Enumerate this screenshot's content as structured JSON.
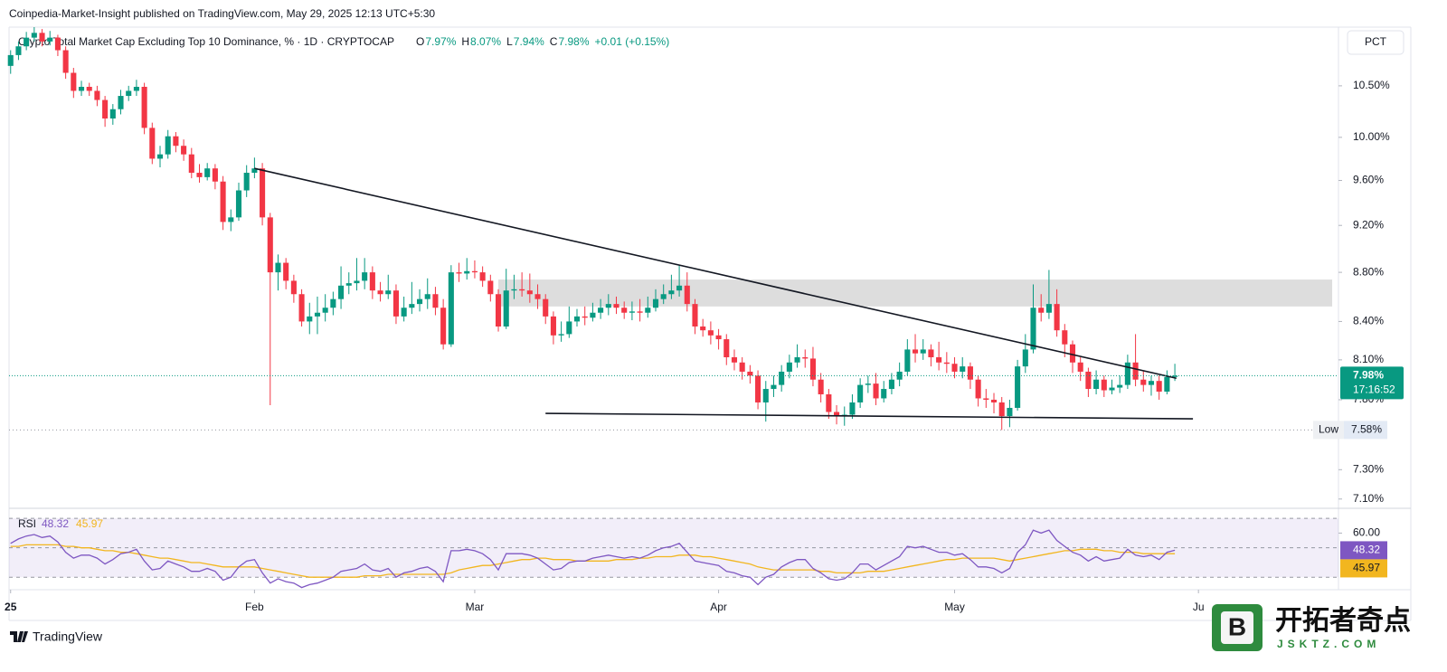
{
  "header": {
    "publisher": "Coinpedia-Market-Insight published on TradingView.com, May 29, 2025 12:13 UTC+5:30",
    "scale_button": "PCT"
  },
  "footer": {
    "brand": "TradingView"
  },
  "watermark": {
    "name": "开拓者奇点",
    "url": "JSKTZ.COM",
    "icon": "B"
  },
  "chart_data": [
    {
      "type": "candlestick",
      "title": "Crypto Total Market Cap Excluding Top 10 Dominance, % · 1D · CRYPTOCAP",
      "legend": [
        {
          "key": "O",
          "value": "7.97%"
        },
        {
          "key": "H",
          "value": "8.07%"
        },
        {
          "key": "L",
          "value": "7.94%"
        },
        {
          "key": "C",
          "value": "7.98%"
        }
      ],
      "change": "+0.01 (+0.15%)",
      "up_color": "#089981",
      "down_color": "#f23645",
      "log_scale": true,
      "grid": false,
      "xlim": [
        -0.2,
        168.8
      ],
      "ylim": [
        7.05,
        11.1
      ],
      "xticks": [
        {
          "value": 0,
          "label": "25"
        },
        {
          "value": 31,
          "label": "Feb"
        },
        {
          "value": 59,
          "label": "Mar"
        },
        {
          "value": 90,
          "label": "Apr"
        },
        {
          "value": 120,
          "label": "May"
        },
        {
          "value": 151,
          "label": "Ju"
        }
      ],
      "yticks": [
        {
          "value": 10.5,
          "label": "10.50%"
        },
        {
          "value": 10,
          "label": "10.00%"
        },
        {
          "value": 9.6,
          "label": "9.60%"
        },
        {
          "value": 9.2,
          "label": "9.20%"
        },
        {
          "value": 8.8,
          "label": "8.80%"
        },
        {
          "value": 8.4,
          "label": "8.40%"
        },
        {
          "value": 8.1,
          "label": "8.10%"
        },
        {
          "value": 7.8,
          "label": "7.80%"
        },
        {
          "value": 7.3,
          "label": "7.30%"
        },
        {
          "value": 7.1,
          "label": "7.10%"
        }
      ],
      "open": [
        10.7,
        10.81,
        10.9,
        10.99,
        11.04,
        10.95,
        10.99,
        10.86,
        10.63,
        10.45,
        10.49,
        10.45,
        10.36,
        10.18,
        10.27,
        10.4,
        10.45,
        10.49,
        10.09,
        9.8,
        9.84,
        10.01,
        9.92,
        9.84,
        9.67,
        9.63,
        9.71,
        9.59,
        9.23,
        9.27,
        9.51,
        9.67,
        9.71,
        9.27,
        8.8,
        8.88,
        8.73,
        8.62,
        8.4,
        8.44,
        8.47,
        8.51,
        8.58,
        8.69,
        8.71,
        8.73,
        8.8,
        8.65,
        8.62,
        8.65,
        8.44,
        8.51,
        8.54,
        8.58,
        8.62,
        8.51,
        8.22,
        8.8,
        8.79,
        8.81,
        8.8,
        8.73,
        8.62,
        8.36,
        8.65,
        8.66,
        8.65,
        8.62,
        8.58,
        8.44,
        8.29,
        8.3,
        8.4,
        8.44,
        8.43,
        8.47,
        8.51,
        8.54,
        8.51,
        8.47,
        8.48,
        8.47,
        8.51,
        8.58,
        8.62,
        8.65,
        8.69,
        8.54,
        8.36,
        8.33,
        8.29,
        8.26,
        8.12,
        8.08,
        8.01,
        7.98,
        7.78,
        7.88,
        7.91,
        8.01,
        8.08,
        8.12,
        8.11,
        7.95,
        7.84,
        7.71,
        7.68,
        7.69,
        7.78,
        7.91,
        7.92,
        7.81,
        7.88,
        7.95,
        8.01,
        8.18,
        8.15,
        8.18,
        8.12,
        8.08,
        8.07,
        8.01,
        8.05,
        7.95,
        7.81,
        7.8,
        7.78,
        7.68,
        7.74,
        8.05,
        8.18,
        8.51,
        8.47,
        8.54,
        8.33,
        8.22,
        8.08,
        8.01,
        7.88,
        7.95,
        7.87,
        7.89,
        7.91,
        8.08,
        7.95,
        7.91,
        7.94,
        7.86,
        7.97
      ],
      "high": [
        10.86,
        10.95,
        11.05,
        11.1,
        11.08,
        11.06,
        11.02,
        10.9,
        10.68,
        10.55,
        10.53,
        10.5,
        10.4,
        10.32,
        10.46,
        10.5,
        10.56,
        10.53,
        10.14,
        9.92,
        10.07,
        10.05,
        9.98,
        9.9,
        9.75,
        9.76,
        9.75,
        9.64,
        9.34,
        9.58,
        9.74,
        9.81,
        9.76,
        9.31,
        8.95,
        8.92,
        8.78,
        8.66,
        8.55,
        8.6,
        8.62,
        8.64,
        8.85,
        8.8,
        8.92,
        8.92,
        8.85,
        8.72,
        8.78,
        8.7,
        8.6,
        8.72,
        8.66,
        8.75,
        8.68,
        8.58,
        8.86,
        8.88,
        8.92,
        8.9,
        8.85,
        8.78,
        8.66,
        8.83,
        8.78,
        8.8,
        8.79,
        8.7,
        8.62,
        8.48,
        8.4,
        8.52,
        8.5,
        8.52,
        8.55,
        8.58,
        8.62,
        8.6,
        8.56,
        8.56,
        8.58,
        8.6,
        8.66,
        8.7,
        8.78,
        8.86,
        8.8,
        8.58,
        8.42,
        8.4,
        8.34,
        8.3,
        8.18,
        8.12,
        8.06,
        8.02,
        7.94,
        7.98,
        8.06,
        8.14,
        8.22,
        8.18,
        8.2,
        8.0,
        7.88,
        7.76,
        7.75,
        7.84,
        7.96,
        7.98,
        8.0,
        7.94,
        8.0,
        8.08,
        8.26,
        8.3,
        8.26,
        8.22,
        8.24,
        8.16,
        8.12,
        8.12,
        8.08,
        7.98,
        7.88,
        7.85,
        7.82,
        7.8,
        8.1,
        8.3,
        8.7,
        8.62,
        8.82,
        8.66,
        8.38,
        8.25,
        8.12,
        8.04,
        8.02,
        7.98,
        7.95,
        7.98,
        8.14,
        8.3,
        8.02,
        7.98,
        7.98,
        8.02,
        8.07
      ],
      "low": [
        10.62,
        10.76,
        10.86,
        10.95,
        10.9,
        10.91,
        10.8,
        10.57,
        10.38,
        10.4,
        10.4,
        10.3,
        10.1,
        10.12,
        10.22,
        10.35,
        10.4,
        10.03,
        9.75,
        9.72,
        9.8,
        9.86,
        9.78,
        9.62,
        9.58,
        9.6,
        9.52,
        9.16,
        9.15,
        9.24,
        9.45,
        9.62,
        9.2,
        7.76,
        8.65,
        8.66,
        8.55,
        8.36,
        8.3,
        8.3,
        8.4,
        8.45,
        8.5,
        8.62,
        8.65,
        8.66,
        8.58,
        8.56,
        8.58,
        8.38,
        8.4,
        8.46,
        8.48,
        8.5,
        8.45,
        8.18,
        8.2,
        8.72,
        8.74,
        8.75,
        8.68,
        8.56,
        8.32,
        8.34,
        8.58,
        8.6,
        8.55,
        8.5,
        8.38,
        8.22,
        8.24,
        8.27,
        8.36,
        8.37,
        8.4,
        8.42,
        8.45,
        8.46,
        8.42,
        8.41,
        8.4,
        8.43,
        8.48,
        8.54,
        8.58,
        8.6,
        8.48,
        8.3,
        8.28,
        8.22,
        8.18,
        8.06,
        8.02,
        7.95,
        7.92,
        7.73,
        7.64,
        7.82,
        7.86,
        7.96,
        8.04,
        8.04,
        7.9,
        7.78,
        7.66,
        7.62,
        7.61,
        7.66,
        7.74,
        7.85,
        7.76,
        7.78,
        7.84,
        7.9,
        7.98,
        8.08,
        8.1,
        8.05,
        8.02,
        8.0,
        7.96,
        7.96,
        7.88,
        7.75,
        7.74,
        7.7,
        7.58,
        7.6,
        7.72,
        8.0,
        8.15,
        8.4,
        8.42,
        8.28,
        8.12,
        8.0,
        7.94,
        7.82,
        7.84,
        7.82,
        7.84,
        7.85,
        7.88,
        7.9,
        7.86,
        7.83,
        7.8,
        7.84,
        7.94
      ],
      "close": [
        10.81,
        10.9,
        10.99,
        11.04,
        10.95,
        10.99,
        10.86,
        10.63,
        10.45,
        10.49,
        10.45,
        10.36,
        10.18,
        10.27,
        10.4,
        10.45,
        10.49,
        10.09,
        9.8,
        9.84,
        10.01,
        9.92,
        9.84,
        9.67,
        9.63,
        9.71,
        9.59,
        9.23,
        9.27,
        9.51,
        9.67,
        9.71,
        9.27,
        8.8,
        8.88,
        8.73,
        8.62,
        8.4,
        8.44,
        8.47,
        8.51,
        8.58,
        8.69,
        8.71,
        8.73,
        8.8,
        8.65,
        8.62,
        8.65,
        8.44,
        8.51,
        8.54,
        8.58,
        8.62,
        8.51,
        8.22,
        8.8,
        8.79,
        8.81,
        8.8,
        8.73,
        8.62,
        8.36,
        8.65,
        8.66,
        8.65,
        8.62,
        8.58,
        8.44,
        8.29,
        8.3,
        8.4,
        8.44,
        8.43,
        8.47,
        8.51,
        8.54,
        8.51,
        8.47,
        8.48,
        8.47,
        8.51,
        8.58,
        8.62,
        8.65,
        8.69,
        8.54,
        8.36,
        8.33,
        8.29,
        8.26,
        8.12,
        8.08,
        8.01,
        7.98,
        7.78,
        7.88,
        7.91,
        8.01,
        8.08,
        8.12,
        8.11,
        7.95,
        7.84,
        7.71,
        7.68,
        7.69,
        7.78,
        7.91,
        7.92,
        7.81,
        7.88,
        7.95,
        8.01,
        8.18,
        8.15,
        8.18,
        8.12,
        8.08,
        8.07,
        8.01,
        8.05,
        7.95,
        7.81,
        7.8,
        7.78,
        7.68,
        7.74,
        8.05,
        8.18,
        8.51,
        8.47,
        8.54,
        8.33,
        8.22,
        8.08,
        8.01,
        7.88,
        7.95,
        7.87,
        7.89,
        7.91,
        8.08,
        7.95,
        7.91,
        7.94,
        7.86,
        7.97,
        7.98
      ],
      "last_price": {
        "value": 7.98,
        "label": "7.98%",
        "countdown": "17:16:52",
        "color": "#089981"
      },
      "low_marker": {
        "key": "Low",
        "value": 7.58,
        "label": "7.58%"
      },
      "drawings": {
        "lines": [
          {
            "x": [
              31,
              148.2
            ],
            "y": [
              9.71,
              7.96
            ]
          },
          {
            "x": [
              68,
              150.3
            ],
            "y": [
              7.7,
              7.66
            ]
          }
        ],
        "zone": {
          "x": [
            62,
            168
          ],
          "y": [
            8.52,
            8.74
          ]
        }
      }
    },
    {
      "type": "line",
      "title": "RSI",
      "xlim": [
        -0.2,
        168.8
      ],
      "ylim": [
        24,
        75
      ],
      "yticks": [
        {
          "value": 60,
          "label": "60.00"
        }
      ],
      "bands": [
        30,
        50,
        70
      ],
      "series": [
        {
          "color": "#7e57c2",
          "value_label": "48.32",
          "values": [
            53,
            56,
            58,
            59,
            57,
            58,
            54,
            47,
            43,
            45,
            45,
            43,
            39,
            42,
            46,
            47,
            49,
            41,
            35,
            36,
            41,
            39,
            37,
            34,
            34,
            36,
            34,
            28,
            30,
            37,
            41,
            42,
            33,
            26,
            29,
            27,
            26,
            23,
            25,
            26,
            28,
            30,
            34,
            35,
            36,
            39,
            35,
            34,
            36,
            30,
            33,
            34,
            36,
            37,
            34,
            27,
            48,
            48,
            49,
            48,
            46,
            42,
            35,
            46,
            46,
            46,
            45,
            43,
            39,
            35,
            36,
            40,
            41,
            41,
            43,
            44,
            45,
            44,
            43,
            44,
            43,
            45,
            48,
            50,
            51,
            53,
            47,
            41,
            40,
            39,
            38,
            34,
            33,
            31,
            30,
            25,
            30,
            32,
            37,
            40,
            42,
            42,
            36,
            33,
            29,
            28,
            29,
            33,
            39,
            39,
            35,
            38,
            41,
            44,
            51,
            50,
            51,
            49,
            47,
            47,
            45,
            46,
            42,
            37,
            37,
            36,
            33,
            36,
            47,
            52,
            62,
            60,
            62,
            55,
            51,
            47,
            45,
            41,
            44,
            41,
            42,
            43,
            49,
            45,
            44,
            45,
            42,
            47,
            48.32
          ]
        },
        {
          "color": "#f2b61f",
          "value_label": "45.97",
          "values": [
            51,
            51,
            52,
            52,
            52,
            52,
            52,
            51,
            51,
            50,
            50,
            49,
            48,
            48,
            47,
            47,
            46,
            45,
            44,
            43,
            43,
            42,
            41,
            40,
            40,
            39,
            38,
            37,
            37,
            37,
            37,
            37,
            36,
            35,
            34,
            33,
            32,
            31,
            30,
            30,
            30,
            30,
            30,
            30,
            30,
            31,
            31,
            31,
            32,
            32,
            32,
            32,
            32,
            32,
            32,
            32,
            33,
            35,
            36,
            37,
            38,
            38,
            39,
            40,
            41,
            42,
            42,
            43,
            43,
            42,
            42,
            42,
            41,
            41,
            41,
            41,
            41,
            42,
            42,
            42,
            43,
            43,
            44,
            44,
            44,
            45,
            45,
            45,
            44,
            44,
            43,
            42,
            41,
            40,
            39,
            37,
            36,
            35,
            35,
            35,
            35,
            35,
            35,
            34,
            34,
            33,
            33,
            33,
            33,
            34,
            34,
            34,
            35,
            36,
            37,
            38,
            39,
            40,
            41,
            42,
            42,
            43,
            43,
            43,
            43,
            43,
            42,
            41,
            42,
            43,
            44,
            45,
            46,
            47,
            48,
            48,
            49,
            49,
            49,
            48,
            48,
            47,
            47,
            47,
            46,
            46,
            46,
            46,
            45.97
          ]
        }
      ]
    }
  ]
}
